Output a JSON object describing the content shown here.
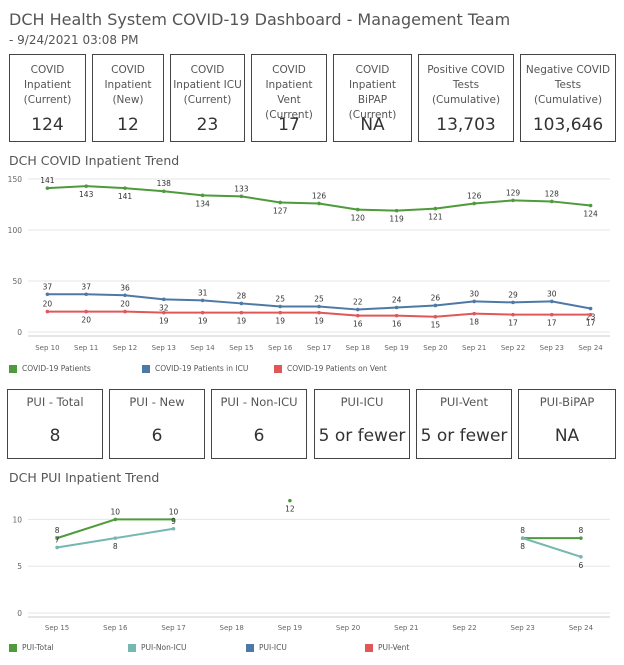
{
  "header": {
    "title": "DCH Health System COVID-19 Dashboard - Management Team",
    "subtitle": "- 9/24/2021 03:08 PM"
  },
  "kpis": [
    {
      "label": "COVID\nInpatient\n(Current)",
      "value": "124"
    },
    {
      "label": "COVID\nInpatient\n(New)",
      "value": "12"
    },
    {
      "label": "COVID\nInpatient ICU\n(Current)",
      "value": "23"
    },
    {
      "label": "COVID\nInpatient Vent\n(Current)",
      "value": "17"
    },
    {
      "label": "COVID\nInpatient BiPAP\n(Current)",
      "value": "NA"
    },
    {
      "label": "Positive COVID\nTests\n(Cumulative)",
      "value": "13,703"
    },
    {
      "label": "Negative COVID\nTests\n(Cumulative)",
      "value": "103,646"
    }
  ],
  "pui_kpis": [
    {
      "label": "PUI - Total",
      "value": "8"
    },
    {
      "label": "PUI - New",
      "value": "6"
    },
    {
      "label": "PUI - Non-ICU",
      "value": "6"
    },
    {
      "label": "PUI-ICU",
      "value": "5 or fewer"
    },
    {
      "label": "PUI-Vent",
      "value": "5 or fewer"
    },
    {
      "label": "PUI-BiPAP",
      "value": "NA"
    }
  ],
  "sections": {
    "inpatient_trend": "DCH COVID Inpatient Trend",
    "pui_trend": "DCH PUI Inpatient Trend"
  },
  "colors": {
    "green": "#4e9a3c",
    "blue": "#4e79a7",
    "red": "#e15759",
    "teal": "#76b7b2",
    "grid": "#e6e6e6",
    "axis": "#cccccc"
  },
  "chart_data": [
    {
      "type": "line",
      "title": "DCH COVID Inpatient Trend",
      "categories": [
        "Sep 10",
        "Sep 11",
        "Sep 12",
        "Sep 13",
        "Sep 14",
        "Sep 15",
        "Sep 16",
        "Sep 17",
        "Sep 18",
        "Sep 19",
        "Sep 20",
        "Sep 21",
        "Sep 22",
        "Sep 23",
        "Sep 24"
      ],
      "yticks": [
        0,
        50,
        100,
        150
      ],
      "ylim": [
        0,
        150
      ],
      "series": [
        {
          "name": "COVID-19 Patients",
          "color": "#4e9a3c",
          "values": [
            141,
            143,
            141,
            138,
            134,
            133,
            127,
            126,
            120,
            119,
            121,
            126,
            129,
            128,
            124
          ]
        },
        {
          "name": "COVID-19 Patients in ICU",
          "color": "#4e79a7",
          "values": [
            37,
            37,
            36,
            32,
            31,
            28,
            25,
            25,
            22,
            24,
            26,
            30,
            29,
            30,
            23
          ]
        },
        {
          "name": "COVID-19 Patients on Vent",
          "color": "#e15759",
          "values": [
            20,
            20,
            20,
            19,
            19,
            19,
            19,
            19,
            16,
            16,
            15,
            18,
            17,
            17,
            17
          ]
        }
      ]
    },
    {
      "type": "line",
      "title": "DCH PUI Inpatient Trend",
      "categories": [
        "Sep 15",
        "Sep 16",
        "Sep 17",
        "Sep 18",
        "Sep 19",
        "Sep 20",
        "Sep 21",
        "Sep 22",
        "Sep 23",
        "Sep 24"
      ],
      "yticks": [
        0,
        5,
        10
      ],
      "ylim": [
        0,
        12.5
      ],
      "series": [
        {
          "name": "PUI-Total",
          "color": "#4e9a3c",
          "values": [
            8,
            10,
            10,
            null,
            12,
            null,
            null,
            null,
            8,
            8
          ]
        },
        {
          "name": "PUI-Non-ICU",
          "color": "#76b7b2",
          "values": [
            7,
            8,
            9,
            null,
            null,
            null,
            null,
            null,
            8,
            6
          ]
        },
        {
          "name": "PUI-ICU",
          "color": "#4e79a7",
          "values": [
            null,
            null,
            null,
            null,
            null,
            null,
            null,
            null,
            null,
            null
          ]
        },
        {
          "name": "PUI-Vent",
          "color": "#e15759",
          "values": [
            null,
            null,
            null,
            null,
            null,
            null,
            null,
            null,
            null,
            null
          ]
        }
      ]
    }
  ]
}
